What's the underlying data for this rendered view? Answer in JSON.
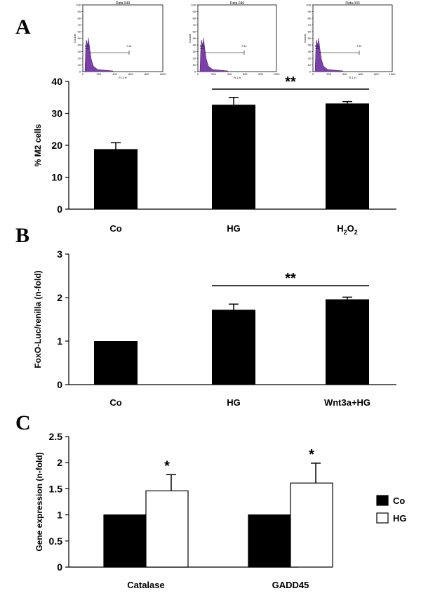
{
  "panels": [
    {
      "letter": "A"
    },
    {
      "letter": "B"
    },
    {
      "letter": "C"
    }
  ],
  "histograms": [
    {
      "title": "Data.049",
      "xlabel": "FL1-H",
      "ylabel": "Counts",
      "yticks": [
        "0",
        "10",
        "20",
        "30",
        "40",
        "50",
        "60",
        "70",
        "80",
        "90",
        "100"
      ],
      "xticks": [
        "0",
        "200",
        "400",
        "600",
        "800",
        "1000"
      ],
      "gate1": "F11",
      "gate2": "F12"
    },
    {
      "title": "Data.046",
      "xlabel": "FL1-H",
      "ylabel": "Counts",
      "yticks": [
        "0",
        "10",
        "20",
        "30",
        "40",
        "50",
        "60",
        "70",
        "80",
        "90",
        "100"
      ],
      "xticks": [
        "0",
        "200",
        "400",
        "600",
        "800",
        "1000"
      ],
      "gate1": "F11",
      "gate2": "F12"
    },
    {
      "title": "Data.033",
      "xlabel": "FL1-H",
      "ylabel": "Counts",
      "yticks": [
        "0",
        "10",
        "20",
        "30",
        "40",
        "50",
        "60",
        "70",
        "80",
        "90",
        "100"
      ],
      "xticks": [
        "0",
        "200",
        "400",
        "600",
        "800",
        "1000"
      ],
      "gate1": "F11",
      "gate2": "F12"
    }
  ],
  "chart_data": [
    {
      "type": "bar",
      "panel": "A",
      "categories": [
        "Co",
        "HG",
        "H2O2"
      ],
      "values": [
        18.8,
        32.7,
        33.1
      ],
      "errors": [
        2.0,
        2.3,
        0.6
      ],
      "ylabel": "% M2 cells",
      "ylim": [
        0,
        40
      ],
      "yticks": [
        "0",
        "10",
        "20",
        "30",
        "40"
      ],
      "significance": {
        "label": "**",
        "from": "HG",
        "to": "H2O2"
      },
      "colors": {
        "bar": "#000000"
      }
    },
    {
      "type": "bar",
      "panel": "B",
      "categories": [
        "Co",
        "HG",
        "Wnt3a+HG"
      ],
      "values": [
        1.0,
        1.72,
        1.96
      ],
      "errors": [
        0,
        0.13,
        0.05
      ],
      "ylabel": "FoxO-Luc/renilla (n-fold)",
      "ylim": [
        0,
        3
      ],
      "yticks": [
        "0",
        "1",
        "2",
        "3"
      ],
      "significance": {
        "label": "**",
        "from": "HG",
        "to": "Wnt3a+HG"
      },
      "colors": {
        "bar": "#000000"
      }
    },
    {
      "type": "bar",
      "panel": "C",
      "categories": [
        "Catalase",
        "GADD45"
      ],
      "series": [
        {
          "name": "Co",
          "values": [
            1.0,
            1.0
          ],
          "errors": [
            0,
            0
          ],
          "color": "#000000"
        },
        {
          "name": "HG",
          "values": [
            1.46,
            1.61
          ],
          "errors": [
            0.31,
            0.38
          ],
          "color": "#ffffff"
        }
      ],
      "significance_labels": [
        "*",
        "*"
      ],
      "ylabel": "Gene expression (n-fold)",
      "ylim": [
        0,
        2.5
      ],
      "yticks": [
        "0",
        "0.5",
        "1",
        "1.5",
        "2",
        "2.5"
      ],
      "legend": "right"
    }
  ]
}
